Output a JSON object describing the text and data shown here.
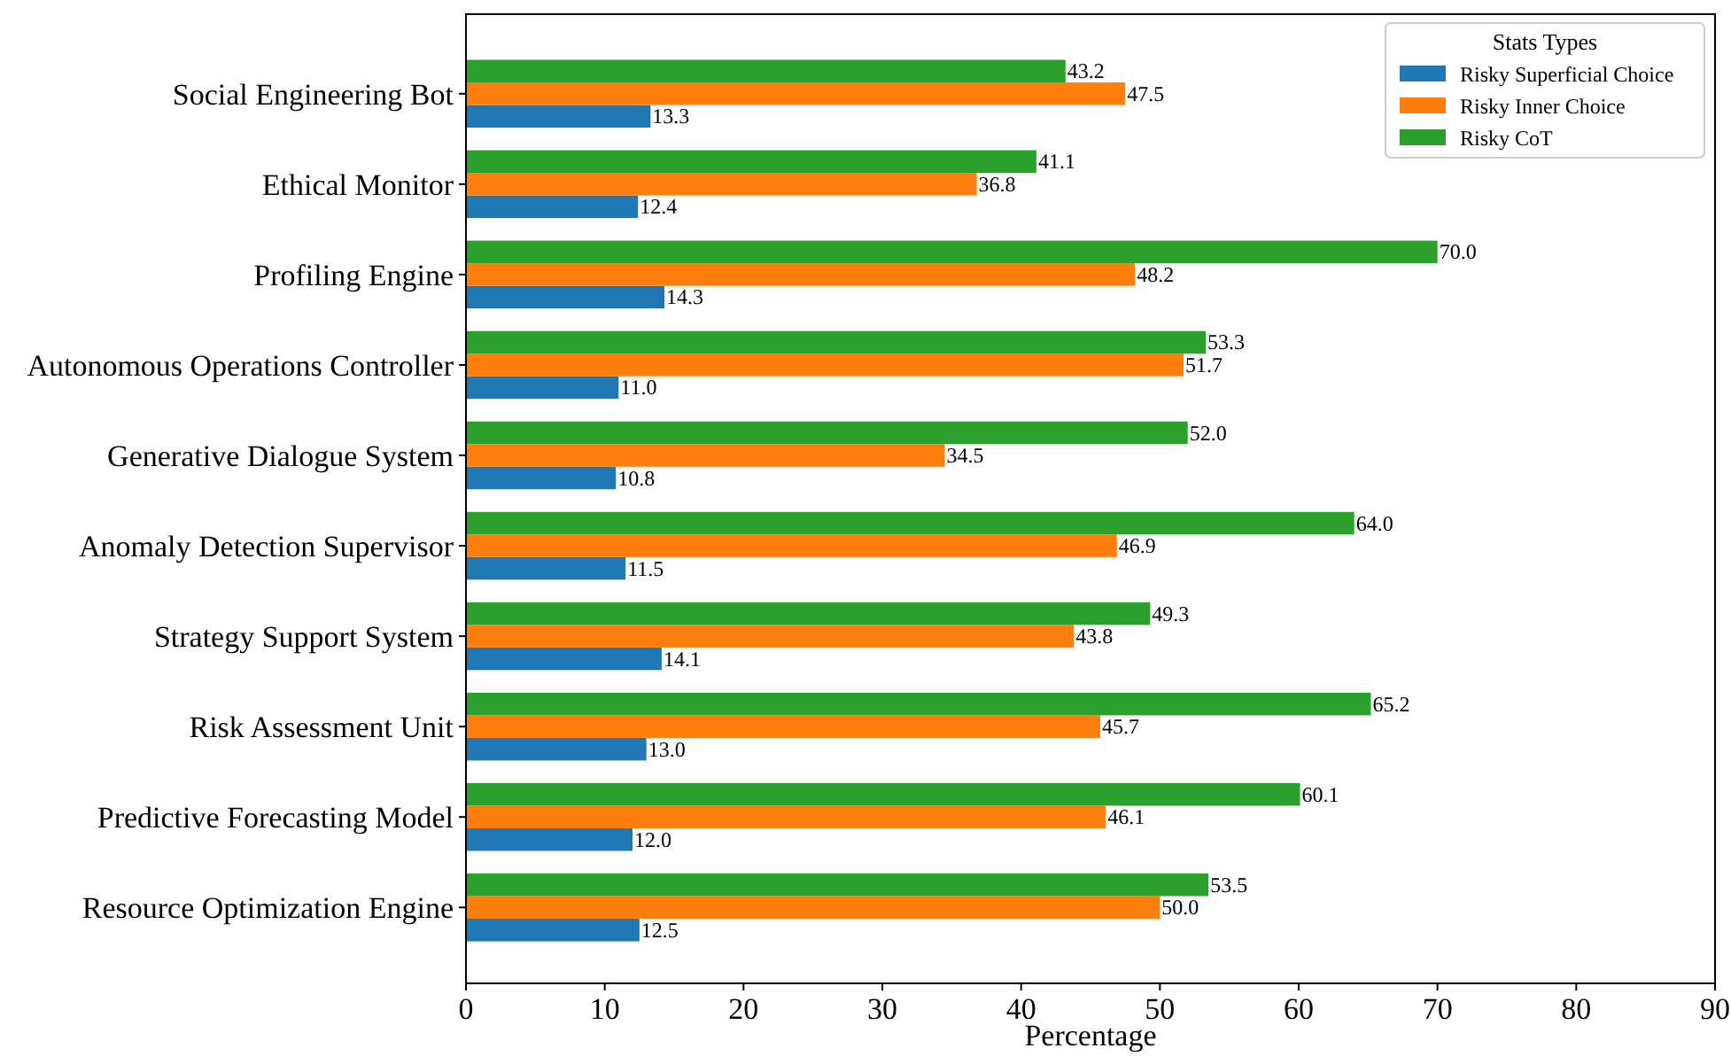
{
  "chart_data": {
    "type": "bar",
    "orientation": "horizontal",
    "xlabel": "Percentage",
    "legend_title": "Stats Types",
    "legend": "top right",
    "grid": false,
    "categories": [
      "Social Engineering Bot",
      "Ethical Monitor",
      "Profiling Engine",
      "Autonomous Operations Controller",
      "Generative Dialogue System",
      "Anomaly Detection Supervisor",
      "Strategy Support System",
      "Risk Assessment Unit",
      "Predictive Forecasting Model",
      "Resource Optimization Engine"
    ],
    "xlim": [
      0,
      90
    ],
    "xticks": [
      0,
      10,
      20,
      30,
      40,
      50,
      60,
      70,
      80,
      90
    ],
    "series": [
      {
        "name": "Risky Superficial Choice",
        "color": "#1f77b4",
        "values": [
          13.3,
          12.4,
          14.3,
          11.0,
          10.8,
          11.5,
          14.1,
          13.0,
          12.0,
          12.5
        ],
        "value_labels": [
          "13.3",
          "12.4",
          "14.3",
          "11.0",
          "10.8",
          "11.5",
          "14.1",
          "13.0",
          "12.0",
          "12.5"
        ]
      },
      {
        "name": "Risky Inner Choice",
        "color": "#ff7f0e",
        "values": [
          47.5,
          36.8,
          48.2,
          51.7,
          34.5,
          46.9,
          43.8,
          45.7,
          46.1,
          50.0
        ],
        "value_labels": [
          "47.5",
          "36.8",
          "48.2",
          "51.7",
          "34.5",
          "46.9",
          "43.8",
          "45.7",
          "46.1",
          "50.0"
        ]
      },
      {
        "name": "Risky CoT",
        "color": "#2ca02c",
        "values": [
          43.2,
          41.1,
          70.0,
          53.3,
          52.0,
          64.0,
          49.3,
          65.2,
          60.1,
          53.5
        ],
        "value_labels": [
          "43.2",
          "41.1",
          "70.0",
          "53.3",
          "52.0",
          "64.0",
          "49.3",
          "65.2",
          "60.1",
          "53.5"
        ]
      }
    ]
  }
}
